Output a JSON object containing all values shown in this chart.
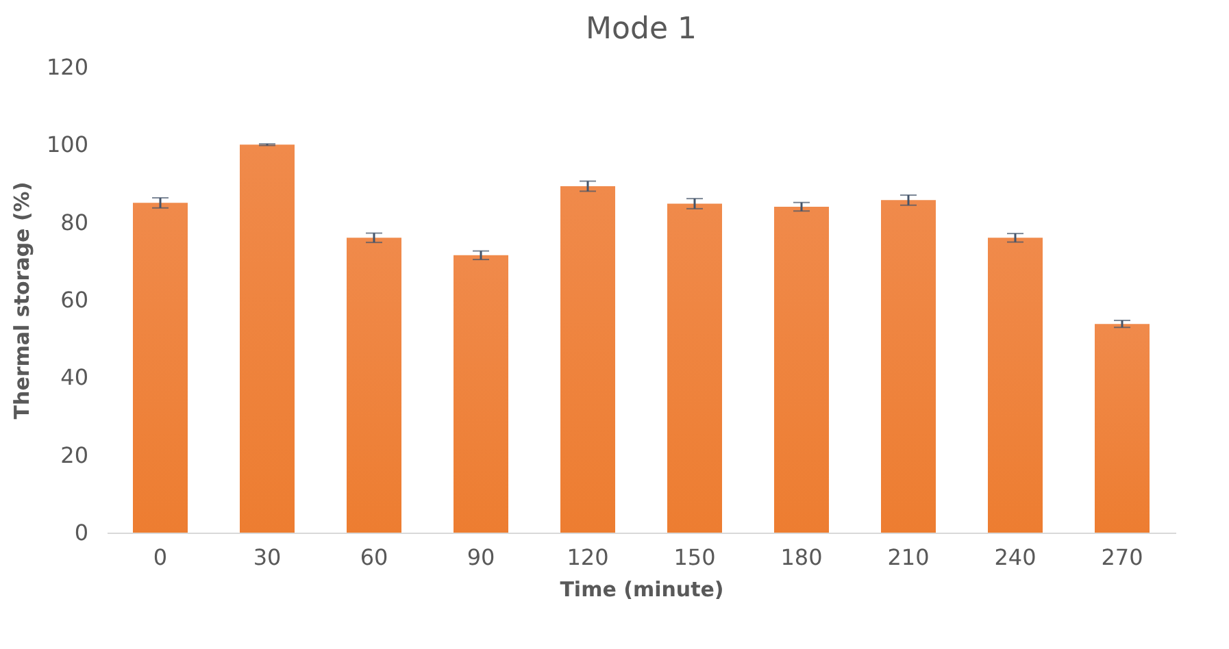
{
  "chart_data": {
    "type": "bar",
    "title": "Mode 1",
    "xlabel": "Time (minute)",
    "ylabel": "Thermal storage (%)",
    "categories": [
      "0",
      "30",
      "60",
      "90",
      "120",
      "150",
      "180",
      "210",
      "240",
      "270"
    ],
    "values": [
      85,
      100,
      76,
      71.5,
      89.3,
      84.8,
      84,
      85.7,
      76,
      53.8
    ],
    "errors": [
      1.3,
      0.2,
      1.2,
      1.1,
      1.3,
      1.3,
      1.1,
      1.3,
      1.1,
      0.9
    ],
    "color": "#ed7d31",
    "ylim": [
      0,
      120
    ],
    "yticks": [
      0,
      20,
      40,
      60,
      80,
      100,
      120
    ],
    "grid": false
  }
}
